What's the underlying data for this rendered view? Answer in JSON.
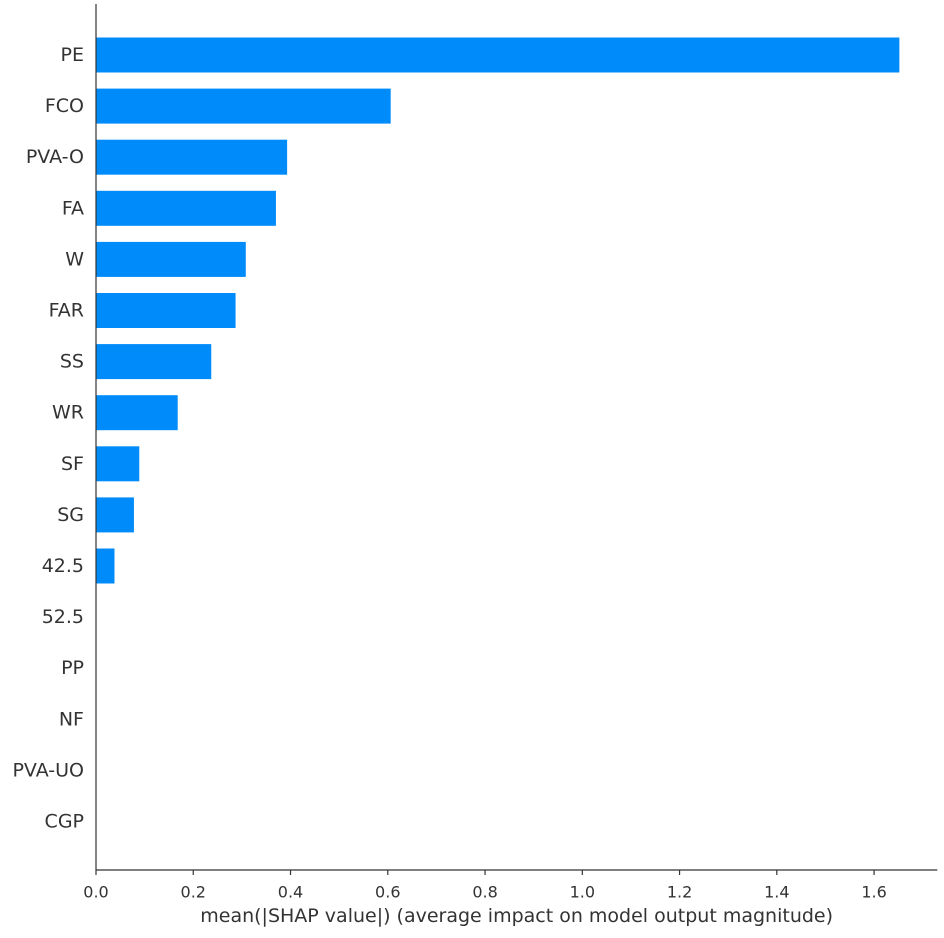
{
  "chart_data": {
    "type": "bar",
    "orientation": "horizontal",
    "categories": [
      "PE",
      "FCO",
      "PVA-O",
      "FA",
      "W",
      "FAR",
      "SS",
      "WR",
      "SF",
      "SG",
      "42.5",
      "52.5",
      "PP",
      "NF",
      "PVA-UO",
      "CGP"
    ],
    "values": [
      1.652,
      0.606,
      0.393,
      0.37,
      0.308,
      0.287,
      0.237,
      0.168,
      0.089,
      0.078,
      0.038,
      0,
      0,
      0,
      0,
      0
    ],
    "xlabel": "mean(|SHAP value|) (average impact on model output magnitude)",
    "ylabel": "",
    "title": "",
    "xlim": [
      0,
      1.73
    ],
    "xticks": [
      "0.0",
      "0.2",
      "0.4",
      "0.6",
      "0.8",
      "1.0",
      "1.2",
      "1.4",
      "1.6"
    ],
    "grid": false,
    "legend": "none",
    "bar_color": "#008bfb"
  }
}
